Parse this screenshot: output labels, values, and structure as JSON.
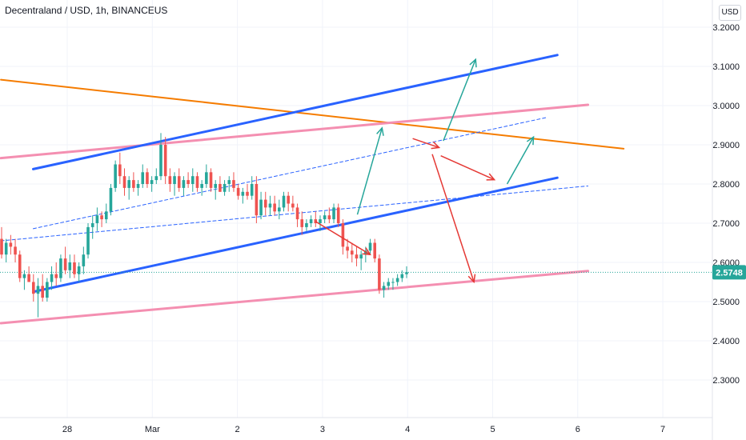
{
  "header": {
    "title": "Decentraland / USD, 1h, BINANCEUS",
    "currency_button": "USD"
  },
  "chart_data": {
    "type": "candlestick",
    "title": "Decentraland / USD, 1h, BINANCEUS",
    "ylim": [
      2.2,
      3.22
    ],
    "y_ticks": [
      "3.2000",
      "3.1000",
      "3.0000",
      "2.9000",
      "2.8000",
      "2.7000",
      "2.6000",
      "2.5000",
      "2.4000",
      "2.3000"
    ],
    "x_range": [
      26.8,
      7.6
    ],
    "x_ticks": [
      {
        "label": "28",
        "day": 28
      },
      {
        "label": "Mar",
        "day": 29
      },
      {
        "label": "2",
        "day": 30
      },
      {
        "label": "3",
        "day": 31
      },
      {
        "label": "4",
        "day": 32
      },
      {
        "label": "5",
        "day": 33
      },
      {
        "label": "6",
        "day": 34
      },
      {
        "label": "7",
        "day": 35
      }
    ],
    "last_price": 2.5748,
    "last_price_label": "2.5748",
    "colors": {
      "up": "#26a69a",
      "down": "#ef5350",
      "blue": "#2962ff",
      "orange": "#f57c00",
      "pink": "#f48fb1",
      "green_arrow": "#26a69a",
      "red_arrow": "#e53935",
      "price_tag": "#26a69a"
    },
    "candles_ohlc": [
      [
        2.66,
        2.69,
        2.61,
        2.62
      ],
      [
        2.62,
        2.66,
        2.6,
        2.65
      ],
      [
        2.65,
        2.67,
        2.62,
        2.64
      ],
      [
        2.64,
        2.66,
        2.6,
        2.62
      ],
      [
        2.62,
        2.63,
        2.55,
        2.56
      ],
      [
        2.56,
        2.58,
        2.53,
        2.57
      ],
      [
        2.57,
        2.59,
        2.55,
        2.55
      ],
      [
        2.55,
        2.57,
        2.5,
        2.52
      ],
      [
        2.52,
        2.56,
        2.46,
        2.54
      ],
      [
        2.54,
        2.57,
        2.5,
        2.51
      ],
      [
        2.51,
        2.56,
        2.5,
        2.55
      ],
      [
        2.55,
        2.59,
        2.53,
        2.57
      ],
      [
        2.57,
        2.6,
        2.54,
        2.56
      ],
      [
        2.56,
        2.62,
        2.55,
        2.61
      ],
      [
        2.61,
        2.64,
        2.57,
        2.58
      ],
      [
        2.58,
        2.62,
        2.56,
        2.6
      ],
      [
        2.6,
        2.62,
        2.56,
        2.57
      ],
      [
        2.57,
        2.6,
        2.55,
        2.59
      ],
      [
        2.59,
        2.64,
        2.57,
        2.62
      ],
      [
        2.62,
        2.7,
        2.61,
        2.69
      ],
      [
        2.69,
        2.72,
        2.66,
        2.7
      ],
      [
        2.7,
        2.74,
        2.68,
        2.72
      ],
      [
        2.72,
        2.73,
        2.69,
        2.71
      ],
      [
        2.71,
        2.75,
        2.7,
        2.73
      ],
      [
        2.73,
        2.8,
        2.72,
        2.79
      ],
      [
        2.79,
        2.86,
        2.78,
        2.85
      ],
      [
        2.85,
        2.88,
        2.8,
        2.82
      ],
      [
        2.82,
        2.84,
        2.77,
        2.79
      ],
      [
        2.79,
        2.82,
        2.76,
        2.81
      ],
      [
        2.81,
        2.83,
        2.78,
        2.79
      ],
      [
        2.79,
        2.81,
        2.77,
        2.8
      ],
      [
        2.8,
        2.85,
        2.79,
        2.83
      ],
      [
        2.83,
        2.84,
        2.79,
        2.8
      ],
      [
        2.8,
        2.82,
        2.78,
        2.81
      ],
      [
        2.81,
        2.84,
        2.8,
        2.82
      ],
      [
        2.82,
        2.93,
        2.81,
        2.9
      ],
      [
        2.9,
        2.92,
        2.8,
        2.82
      ],
      [
        2.82,
        2.84,
        2.78,
        2.8
      ],
      [
        2.8,
        2.83,
        2.77,
        2.82
      ],
      [
        2.82,
        2.84,
        2.78,
        2.79
      ],
      [
        2.79,
        2.82,
        2.77,
        2.81
      ],
      [
        2.81,
        2.83,
        2.79,
        2.8
      ],
      [
        2.8,
        2.84,
        2.78,
        2.82
      ],
      [
        2.82,
        2.83,
        2.78,
        2.79
      ],
      [
        2.79,
        2.81,
        2.77,
        2.8
      ],
      [
        2.8,
        2.85,
        2.79,
        2.83
      ],
      [
        2.83,
        2.84,
        2.78,
        2.79
      ],
      [
        2.79,
        2.81,
        2.76,
        2.8
      ],
      [
        2.8,
        2.82,
        2.78,
        2.78
      ],
      [
        2.78,
        2.81,
        2.77,
        2.8
      ],
      [
        2.8,
        2.82,
        2.78,
        2.81
      ],
      [
        2.81,
        2.83,
        2.78,
        2.79
      ],
      [
        2.79,
        2.8,
        2.76,
        2.77
      ],
      [
        2.77,
        2.79,
        2.75,
        2.78
      ],
      [
        2.78,
        2.8,
        2.76,
        2.77
      ],
      [
        2.77,
        2.82,
        2.76,
        2.8
      ],
      [
        2.8,
        2.82,
        2.7,
        2.72
      ],
      [
        2.72,
        2.78,
        2.71,
        2.76
      ],
      [
        2.76,
        2.78,
        2.72,
        2.74
      ],
      [
        2.74,
        2.77,
        2.72,
        2.75
      ],
      [
        2.75,
        2.77,
        2.72,
        2.73
      ],
      [
        2.73,
        2.76,
        2.71,
        2.74
      ],
      [
        2.74,
        2.78,
        2.73,
        2.77
      ],
      [
        2.77,
        2.78,
        2.73,
        2.75
      ],
      [
        2.75,
        2.77,
        2.73,
        2.74
      ],
      [
        2.74,
        2.75,
        2.69,
        2.71
      ],
      [
        2.71,
        2.73,
        2.67,
        2.69
      ],
      [
        2.69,
        2.71,
        2.68,
        2.7
      ],
      [
        2.7,
        2.72,
        2.69,
        2.71
      ],
      [
        2.71,
        2.73,
        2.69,
        2.7
      ],
      [
        2.7,
        2.72,
        2.68,
        2.71
      ],
      [
        2.71,
        2.73,
        2.7,
        2.72
      ],
      [
        2.72,
        2.74,
        2.7,
        2.71
      ],
      [
        2.71,
        2.75,
        2.7,
        2.74
      ],
      [
        2.74,
        2.75,
        2.69,
        2.7
      ],
      [
        2.7,
        2.71,
        2.62,
        2.64
      ],
      [
        2.64,
        2.66,
        2.61,
        2.63
      ],
      [
        2.63,
        2.65,
        2.6,
        2.62
      ],
      [
        2.62,
        2.64,
        2.59,
        2.61
      ],
      [
        2.61,
        2.63,
        2.58,
        2.62
      ],
      [
        2.62,
        2.64,
        2.6,
        2.63
      ],
      [
        2.63,
        2.66,
        2.62,
        2.65
      ],
      [
        2.65,
        2.66,
        2.6,
        2.61
      ],
      [
        2.61,
        2.62,
        2.52,
        2.53
      ],
      [
        2.53,
        2.55,
        2.51,
        2.54
      ],
      [
        2.54,
        2.56,
        2.53,
        2.55
      ],
      [
        2.55,
        2.56,
        2.53,
        2.55
      ],
      [
        2.55,
        2.57,
        2.54,
        2.56
      ],
      [
        2.56,
        2.58,
        2.55,
        2.57
      ],
      [
        2.57,
        2.59,
        2.56,
        2.575
      ]
    ]
  }
}
